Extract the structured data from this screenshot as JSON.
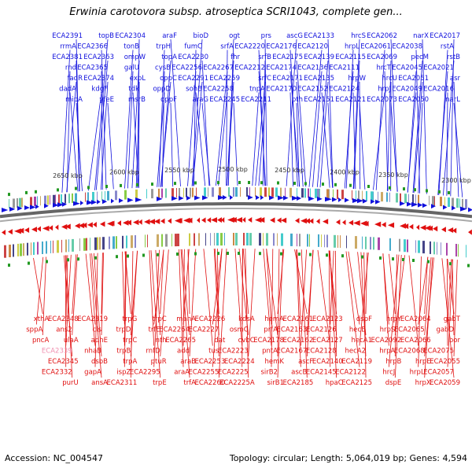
{
  "title": "Erwinia carotovora subsp. atroseptica SCRI1043, complete gen...",
  "accession_label": "Accession: NC_004547",
  "topology_label": "Topology: circular; Length: 5,064,019 bp; Genes: 4,594",
  "colors": {
    "forward": "#1010dd",
    "reverse": "#e01010",
    "highlight": "#f090b0",
    "backbone": "#888888"
  },
  "ticks": [
    "2300 kbp",
    "2350 kbp",
    "2400 kbp",
    "2450 kbp",
    "2500 kbp",
    "2550 kbp",
    "2600 kbp",
    "2650 kbp"
  ],
  "top_labels": [
    [
      "ECA2017",
      "rstA",
      "rstB",
      "ECA2021",
      "asr",
      "ECA2016",
      "narL",
      "narX",
      "ECA2038",
      "pecM",
      "ECA2045",
      "ECA2051",
      "ECA2049",
      "ECA2050",
      "ECA2062",
      "ECA2061",
      "ECA2069",
      "hrcT",
      "hrcU",
      "hrpJ",
      "ECA2073",
      "hrcS",
      "hrpL",
      "ECA2115",
      "ECA2111",
      "hrpW",
      "ECA2124",
      "ECA2121",
      "ECA2133",
      "ECA2120",
      "ECA2139",
      "ECA2136",
      "ECA2135",
      "ECA2152",
      "ECA2151",
      "ascG",
      "ECA2176",
      "ECA2175",
      "ECA2174",
      "ECA2171",
      "ECA2170",
      "pth",
      "prs",
      "ECA2220",
      "srfB",
      "ECA2212",
      "srfC",
      "tnpA",
      "ECA2211",
      "ogt",
      "srfA",
      "fhr"
    ],
    [
      "ECA2267",
      "ECA2259",
      "ECA2258",
      "ECA2245",
      "bioD",
      "fumC",
      "ECA2230",
      "ECA2256",
      "ECA2291",
      "sohB",
      "araG",
      "araF",
      "trpH",
      "topA",
      "cysB",
      "oppC",
      "oppD",
      "oppF",
      "ECA2304",
      "tonB",
      "ompW",
      "galU",
      "expL",
      "tdk",
      "msrB",
      "topB",
      "ECA2366",
      "ECA2363",
      "ECA2365",
      "ECA2374",
      "kdgF",
      "yfeE",
      "ECA2391",
      "rrmA",
      "ECA2381",
      "rnd",
      "fadR",
      "dadA",
      "mipA"
    ]
  ],
  "bottom_labels": [
    [
      "gabT",
      "gabD",
      "bor",
      "ECA2075",
      "ECA2055",
      "ECA2057",
      "ECA2059",
      "ECA2064",
      "ECA2065",
      "ECA2066",
      "ECA2068",
      "hrpE",
      "hrpL",
      "hrpX",
      "hrpY",
      "hrpS",
      "ECA2092",
      "hrpA",
      "hrpB",
      "hrcJ",
      "dspE",
      "dspF",
      "hecB",
      "hecA1",
      "hecA2",
      "ECA2119",
      "ECA2122",
      "ECA2125",
      "ECA2123",
      "ECA2126",
      "ECA2127",
      "ECA2128",
      "ECA2140",
      "ECA2145",
      "hpaC",
      "ECA2161",
      "ECA2163",
      "ECA2162",
      "ECA2167",
      "ascF",
      "ascB",
      "ECA2185",
      "hemA",
      "prfA",
      "ECA2178",
      "pntA",
      "hemK",
      "sirB2",
      "sirB1",
      "kdsA"
    ],
    [
      "osmC",
      "cvbC",
      "ECA2223",
      "ECA2224",
      "ECA2225",
      "ECA2225A",
      "ECA2226",
      "ECA2227",
      "dat",
      "tus",
      "ECA2253",
      "ECA2255",
      "ECA2260",
      "manA",
      "ECA2264",
      "ECA2265",
      "add",
      "araB",
      "araA",
      "trfA",
      "trpC",
      "trfE",
      "nth",
      "rnfD",
      "ptuR",
      "ECA2295",
      "trpE",
      "trpG",
      "trpD",
      "trpC",
      "trpB",
      "trpA",
      "ispZ",
      "ECA2311",
      "ECA2319",
      "cls",
      "adhE",
      "nhaB",
      "dsbB",
      "gapA",
      "ansA",
      "ECA2348",
      "ans2",
      "ulaA",
      "ECA2339",
      "ECA2345",
      "ECA2332",
      "purU",
      "xthA",
      "sppA",
      "pncA"
    ]
  ],
  "highlight_label": "ECA2339"
}
